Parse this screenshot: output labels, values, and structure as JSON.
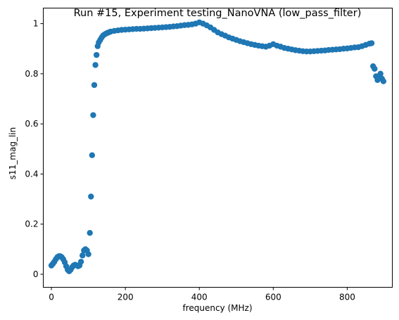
{
  "chart_data": {
    "type": "scatter",
    "title": "Run #15, Experiment testing_NanoVNA (low_pass_filter)",
    "xlabel": "frequency (MHz)",
    "ylabel": "s11_mag_lin",
    "xlim": [
      -22,
      922
    ],
    "ylim": [
      -0.052,
      1.062
    ],
    "xticks": [
      0,
      200,
      400,
      600,
      800
    ],
    "yticks": [
      0,
      0.2,
      0.4,
      0.6,
      0.8,
      1
    ],
    "xtick_labels": [
      "0",
      "200",
      "400",
      "600",
      "800"
    ],
    "ytick_labels": [
      "0",
      "0.2",
      "0.4",
      "0.6",
      "0.8",
      "1"
    ],
    "grid": false,
    "marker_color": "#1f77b4",
    "series": [
      {
        "x": [
          0,
          4,
          8,
          12,
          16,
          20,
          24,
          28,
          32,
          36,
          40,
          44,
          48,
          52,
          56,
          60,
          64,
          68,
          72,
          76,
          80,
          84,
          88,
          92,
          96,
          100,
          104,
          107,
          110,
          113,
          116,
          119,
          122,
          125,
          128,
          132,
          136,
          140,
          145,
          150,
          155,
          160,
          170,
          180,
          190,
          200,
          210,
          220,
          230,
          240,
          250,
          260,
          270,
          280,
          290,
          300,
          310,
          320,
          330,
          340,
          350,
          360,
          370,
          380,
          390,
          400,
          410,
          420,
          430,
          440,
          450,
          460,
          470,
          480,
          490,
          500,
          510,
          520,
          530,
          540,
          550,
          560,
          570,
          580,
          590,
          600,
          610,
          620,
          630,
          640,
          650,
          660,
          670,
          680,
          690,
          700,
          710,
          720,
          730,
          740,
          750,
          760,
          770,
          780,
          790,
          800,
          810,
          820,
          830,
          840,
          850,
          860,
          866,
          870,
          874,
          878,
          882,
          886,
          890,
          894,
          898
        ],
        "y": [
          0.035,
          0.042,
          0.05,
          0.06,
          0.068,
          0.072,
          0.072,
          0.068,
          0.06,
          0.048,
          0.032,
          0.018,
          0.012,
          0.018,
          0.028,
          0.035,
          0.038,
          0.036,
          0.032,
          0.035,
          0.05,
          0.075,
          0.095,
          0.1,
          0.095,
          0.08,
          0.165,
          0.31,
          0.475,
          0.635,
          0.755,
          0.835,
          0.875,
          0.91,
          0.925,
          0.935,
          0.945,
          0.953,
          0.958,
          0.962,
          0.965,
          0.968,
          0.971,
          0.973,
          0.975,
          0.976,
          0.977,
          0.978,
          0.979,
          0.979,
          0.98,
          0.981,
          0.982,
          0.983,
          0.984,
          0.985,
          0.986,
          0.987,
          0.989,
          0.99,
          0.992,
          0.994,
          0.995,
          0.997,
          1.0,
          1.005,
          1.0,
          0.993,
          0.985,
          0.975,
          0.965,
          0.958,
          0.952,
          0.945,
          0.94,
          0.935,
          0.93,
          0.926,
          0.922,
          0.918,
          0.915,
          0.912,
          0.91,
          0.908,
          0.912,
          0.918,
          0.912,
          0.908,
          0.903,
          0.9,
          0.897,
          0.894,
          0.892,
          0.89,
          0.889,
          0.889,
          0.89,
          0.891,
          0.892,
          0.893,
          0.895,
          0.896,
          0.897,
          0.898,
          0.9,
          0.901,
          0.903,
          0.905,
          0.906,
          0.91,
          0.915,
          0.92,
          0.922,
          0.83,
          0.82,
          0.79,
          0.775,
          0.785,
          0.8,
          0.78,
          0.77
        ]
      }
    ]
  }
}
